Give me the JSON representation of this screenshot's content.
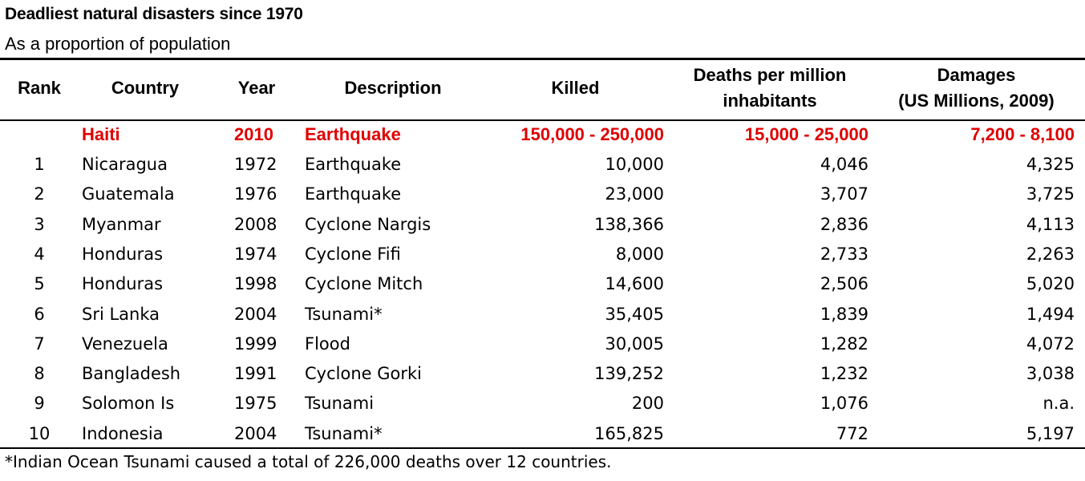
{
  "title": "Deadliest natural disasters since 1970",
  "subtitle": "As a proportion of population",
  "headers": {
    "rank": "Rank",
    "country": "Country",
    "year": "Year",
    "description": "Description",
    "killed": "Killed",
    "deaths_line1": "Deaths per million",
    "deaths_line2": "inhabitants",
    "damages_line1": "Damages",
    "damages_line2": "(US Millions, 2009)"
  },
  "highlight_color": "#e00000",
  "chart_data": {
    "type": "table",
    "title": "Deadliest natural disasters since 1970",
    "subtitle": "As a proportion of population",
    "columns": [
      "Rank",
      "Country",
      "Year",
      "Description",
      "Killed",
      "Deaths per million inhabitants",
      "Damages (US Millions, 2009)"
    ],
    "highlight_row": {
      "rank": "",
      "country": "Haiti",
      "year": "2010",
      "description": "Earthquake",
      "killed": "150,000 - 250,000",
      "deaths": "15,000 - 25,000",
      "damages": "7,200 - 8,100"
    },
    "rows": [
      {
        "rank": "1",
        "country": "Nicaragua",
        "year": "1972",
        "description": "Earthquake",
        "killed": "10,000",
        "deaths": "4,046",
        "damages": "4,325"
      },
      {
        "rank": "2",
        "country": "Guatemala",
        "year": "1976",
        "description": "Earthquake",
        "killed": "23,000",
        "deaths": "3,707",
        "damages": "3,725"
      },
      {
        "rank": "3",
        "country": "Myanmar",
        "year": "2008",
        "description": "Cyclone Nargis",
        "killed": "138,366",
        "deaths": "2,836",
        "damages": "4,113"
      },
      {
        "rank": "4",
        "country": "Honduras",
        "year": "1974",
        "description": "Cyclone Fifi",
        "killed": "8,000",
        "deaths": "2,733",
        "damages": "2,263"
      },
      {
        "rank": "5",
        "country": "Honduras",
        "year": "1998",
        "description": "Cyclone Mitch",
        "killed": "14,600",
        "deaths": "2,506",
        "damages": "5,020"
      },
      {
        "rank": "6",
        "country": "Sri Lanka",
        "year": "2004",
        "description": "Tsunami*",
        "killed": "35,405",
        "deaths": "1,839",
        "damages": "1,494"
      },
      {
        "rank": "7",
        "country": "Venezuela",
        "year": "1999",
        "description": "Flood",
        "killed": "30,005",
        "deaths": "1,282",
        "damages": "4,072"
      },
      {
        "rank": "8",
        "country": "Bangladesh",
        "year": "1991",
        "description": "Cyclone Gorki",
        "killed": "139,252",
        "deaths": "1,232",
        "damages": "3,038"
      },
      {
        "rank": "9",
        "country": "Solomon Is",
        "year": "1975",
        "description": "Tsunami",
        "killed": "200",
        "deaths": "1,076",
        "damages": "n.a."
      },
      {
        "rank": "10",
        "country": "Indonesia",
        "year": "2004",
        "description": "Tsunami*",
        "killed": "165,825",
        "deaths": "772",
        "damages": "5,197"
      }
    ],
    "footnote": "*Indian Ocean Tsunami caused a total of 226,000 deaths over 12 countries."
  }
}
